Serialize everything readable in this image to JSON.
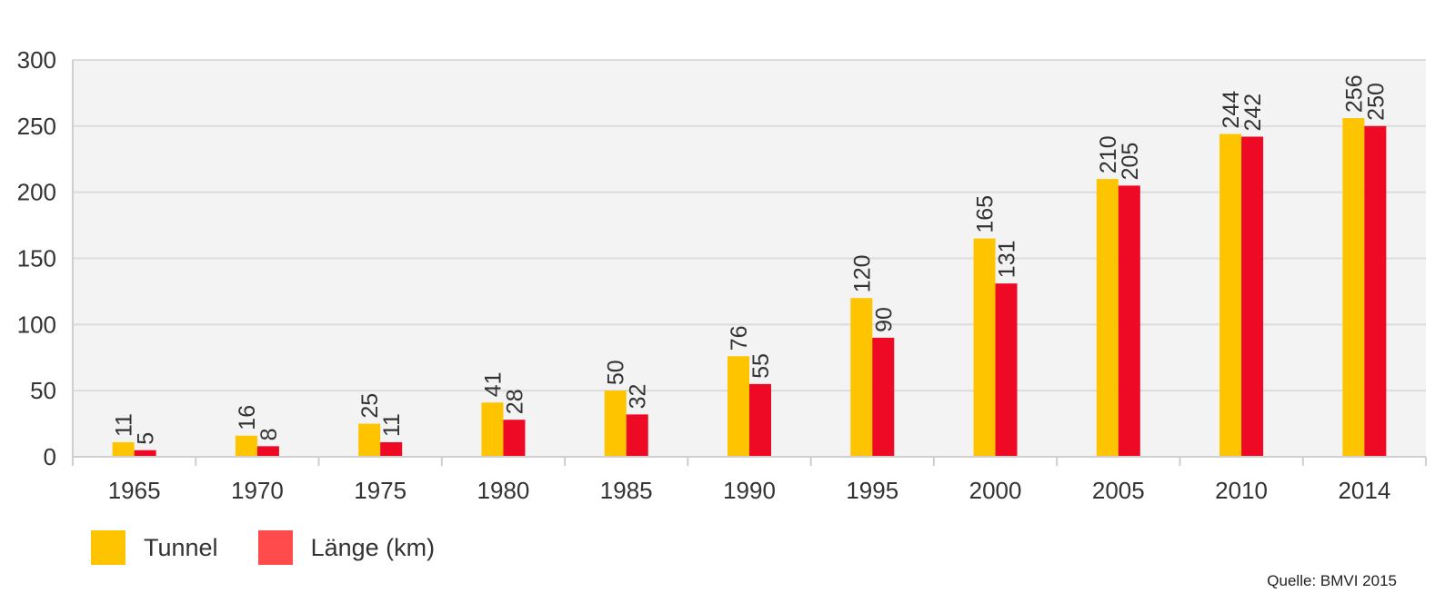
{
  "chart_data": {
    "type": "bar",
    "title": "",
    "xlabel": "",
    "ylabel": "",
    "ylim": [
      0,
      300
    ],
    "yticks": [
      "0",
      "50",
      "100",
      "150",
      "200",
      "250",
      "300"
    ],
    "categories": [
      "1965",
      "1970",
      "1975",
      "1980",
      "1985",
      "1990",
      "1995",
      "2000",
      "2005",
      "2010",
      "2014"
    ],
    "series": [
      {
        "name": "Tunnel",
        "color": "#FFC400",
        "values": [
          11,
          16,
          25,
          41,
          50,
          76,
          120,
          165,
          210,
          244,
          256
        ],
        "labels": [
          "11",
          "16",
          "25",
          "41",
          "50",
          "76",
          "120",
          "165",
          "210",
          "244",
          "256"
        ]
      },
      {
        "name": "Länge (km)",
        "color": "#EE0A24",
        "values": [
          5,
          8,
          11,
          28,
          32,
          55,
          90,
          131,
          205,
          242,
          250
        ],
        "labels": [
          "5",
          "8",
          "11",
          "28",
          "32",
          "55",
          "90",
          "131",
          "205",
          "242",
          "250"
        ]
      }
    ],
    "grid": true,
    "legend": "bottom-left"
  },
  "legend": {
    "items": [
      {
        "label": "Tunnel",
        "color": "#FFC400"
      },
      {
        "label": "Länge (km)",
        "color": "#FF4B4B"
      }
    ]
  },
  "source": "Quelle: BMVI 2015"
}
